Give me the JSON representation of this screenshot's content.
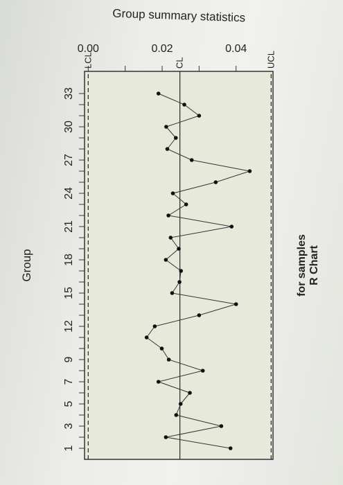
{
  "chart_data": {
    "type": "line",
    "title": "R Chart",
    "subtitle": "for samples",
    "xlabel": "Group",
    "ylabel": "Group summary statistics",
    "x_tick_labels": [
      "1",
      "3",
      "5",
      "7",
      "9",
      "12",
      "15",
      "18",
      "21",
      "24",
      "27",
      "30",
      "33"
    ],
    "y_tick_labels": [
      "0.00",
      "0.02",
      "0.04"
    ],
    "xlim": [
      0,
      35
    ],
    "ylim": [
      -0.001,
      0.05
    ],
    "control_limits": {
      "UCL": {
        "label": "UCL",
        "value": 0.0495
      },
      "CL": {
        "label": "CL",
        "value": 0.0248
      },
      "LCL": {
        "label": "LCL",
        "value": 0.0
      }
    },
    "series": [
      {
        "x": [
          1,
          2,
          3,
          4,
          5,
          6,
          7,
          8,
          9,
          10,
          11,
          12,
          13,
          14,
          15,
          16,
          17,
          18,
          19,
          20,
          21,
          22,
          23,
          24,
          25,
          26,
          27,
          28,
          29,
          30,
          31,
          32,
          33
        ],
        "values": [
          0.0385,
          0.021,
          0.036,
          0.0238,
          0.025,
          0.0275,
          0.019,
          0.031,
          0.0218,
          0.0199,
          0.0158,
          0.018,
          0.03,
          0.04,
          0.0227,
          0.0247,
          0.0251,
          0.021,
          0.0245,
          0.0223,
          0.0388,
          0.0217,
          0.0265,
          0.0229,
          0.0345,
          0.0437,
          0.028,
          0.0214,
          0.0237,
          0.0211,
          0.03,
          0.026,
          0.019
        ]
      }
    ],
    "grid": false,
    "background_color": "#e7eadb",
    "line_color": "#333333",
    "limit_line_color": "#333333"
  }
}
